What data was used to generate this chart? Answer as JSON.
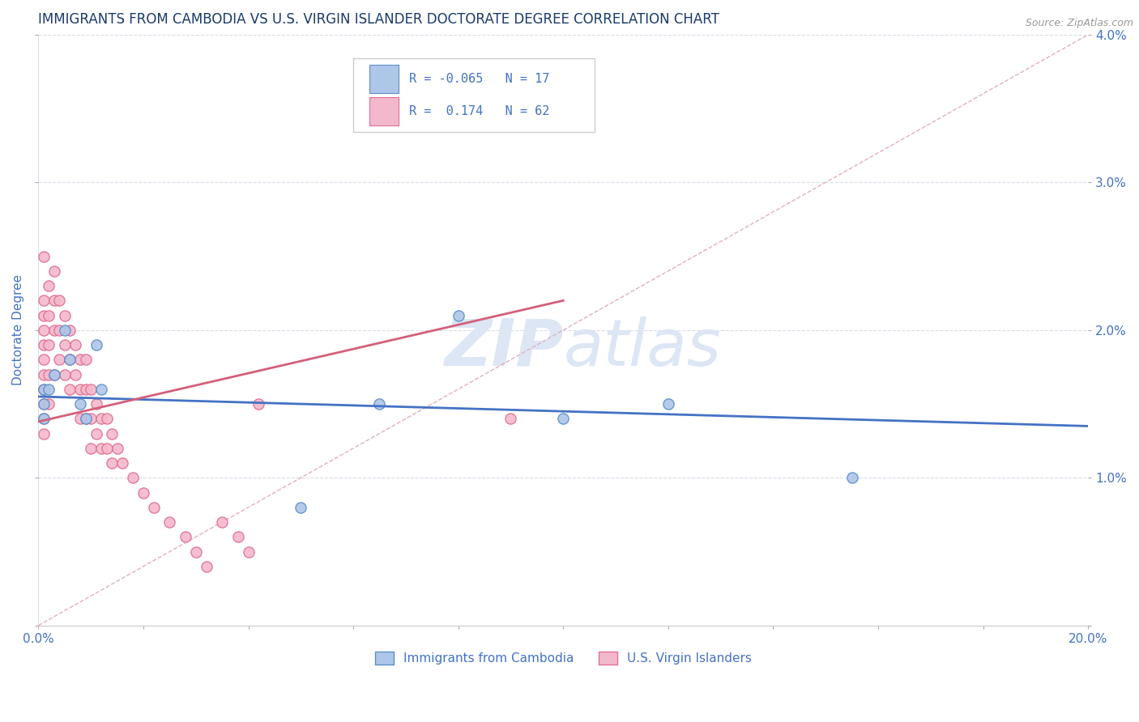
{
  "title": "IMMIGRANTS FROM CAMBODIA VS U.S. VIRGIN ISLANDER DOCTORATE DEGREE CORRELATION CHART",
  "source_text": "Source: ZipAtlas.com",
  "ylabel": "Doctorate Degree",
  "xlim": [
    0.0,
    0.2
  ],
  "ylim": [
    0.0,
    0.04
  ],
  "xticks": [
    0.0,
    0.02,
    0.04,
    0.06,
    0.08,
    0.1,
    0.12,
    0.14,
    0.16,
    0.18,
    0.2
  ],
  "yticks": [
    0.0,
    0.01,
    0.02,
    0.03,
    0.04
  ],
  "legend_R1": "-0.065",
  "legend_N1": "17",
  "legend_R2": "0.174",
  "legend_N2": "62",
  "color_blue": "#aec6e8",
  "color_pink": "#f4b8cc",
  "edge_blue": "#5b8fc9",
  "edge_pink": "#e07090",
  "line_blue": "#4472c4",
  "line_pink": "#d45f7a",
  "line_dash_color": "#e0b0c0",
  "title_color": "#1a3a6b",
  "axis_label_color": "#4472c4",
  "tick_label_color": "#4472c4",
  "watermark_color": "#dce6f4",
  "grid_color": "#d8dce8",
  "background_color": "#ffffff",
  "blue_x": [
    0.001,
    0.001,
    0.001,
    0.002,
    0.003,
    0.005,
    0.006,
    0.008,
    0.009,
    0.011,
    0.012,
    0.05,
    0.065,
    0.08,
    0.1,
    0.12,
    0.155
  ],
  "blue_y": [
    0.016,
    0.015,
    0.014,
    0.016,
    0.017,
    0.02,
    0.018,
    0.015,
    0.014,
    0.019,
    0.016,
    0.008,
    0.015,
    0.021,
    0.014,
    0.015,
    0.01
  ],
  "pink_x": [
    0.001,
    0.001,
    0.001,
    0.001,
    0.001,
    0.001,
    0.001,
    0.001,
    0.001,
    0.001,
    0.001,
    0.002,
    0.002,
    0.002,
    0.002,
    0.002,
    0.003,
    0.003,
    0.003,
    0.003,
    0.004,
    0.004,
    0.004,
    0.005,
    0.005,
    0.005,
    0.006,
    0.006,
    0.006,
    0.007,
    0.007,
    0.008,
    0.008,
    0.008,
    0.009,
    0.009,
    0.009,
    0.01,
    0.01,
    0.01,
    0.011,
    0.011,
    0.012,
    0.012,
    0.013,
    0.013,
    0.014,
    0.014,
    0.015,
    0.016,
    0.018,
    0.02,
    0.022,
    0.025,
    0.028,
    0.03,
    0.032,
    0.035,
    0.038,
    0.04,
    0.042,
    0.09
  ],
  "pink_y": [
    0.025,
    0.022,
    0.021,
    0.02,
    0.019,
    0.018,
    0.017,
    0.016,
    0.015,
    0.014,
    0.013,
    0.023,
    0.021,
    0.019,
    0.017,
    0.015,
    0.024,
    0.022,
    0.02,
    0.017,
    0.022,
    0.02,
    0.018,
    0.021,
    0.019,
    0.017,
    0.02,
    0.018,
    0.016,
    0.019,
    0.017,
    0.018,
    0.016,
    0.014,
    0.018,
    0.016,
    0.014,
    0.016,
    0.014,
    0.012,
    0.015,
    0.013,
    0.014,
    0.012,
    0.014,
    0.012,
    0.013,
    0.011,
    0.012,
    0.011,
    0.01,
    0.009,
    0.008,
    0.007,
    0.006,
    0.005,
    0.004,
    0.007,
    0.006,
    0.005,
    0.015,
    0.014
  ],
  "blue_trend_x": [
    0.0,
    0.2
  ],
  "blue_trend_y": [
    0.0155,
    0.0135
  ],
  "pink_trend_x": [
    0.0,
    0.1
  ],
  "pink_trend_y": [
    0.0138,
    0.022
  ]
}
